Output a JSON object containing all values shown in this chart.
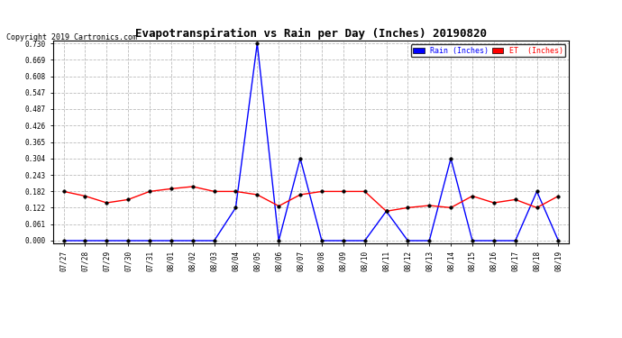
{
  "title": "Evapotranspiration vs Rain per Day (Inches) 20190820",
  "copyright": "Copyright 2019 Cartronics.com",
  "x_labels": [
    "07/27",
    "07/28",
    "07/29",
    "07/30",
    "07/31",
    "08/01",
    "08/02",
    "08/03",
    "08/04",
    "08/05",
    "08/06",
    "08/07",
    "08/08",
    "08/09",
    "08/10",
    "08/11",
    "08/12",
    "08/13",
    "08/14",
    "08/15",
    "08/16",
    "08/17",
    "08/18",
    "08/19"
  ],
  "rain_data": [
    0.0,
    0.0,
    0.0,
    0.0,
    0.0,
    0.0,
    0.0,
    0.0,
    0.122,
    0.73,
    0.0,
    0.304,
    0.0,
    0.0,
    0.0,
    0.109,
    0.0,
    0.0,
    0.304,
    0.0,
    0.0,
    0.0,
    0.182,
    0.0
  ],
  "et_data": [
    0.182,
    0.165,
    0.14,
    0.152,
    0.182,
    0.192,
    0.2,
    0.182,
    0.182,
    0.17,
    0.128,
    0.17,
    0.182,
    0.182,
    0.182,
    0.109,
    0.122,
    0.13,
    0.122,
    0.165,
    0.14,
    0.152,
    0.122,
    0.165
  ],
  "rain_color": "#0000ff",
  "et_color": "#ff0000",
  "title_fontsize": 9,
  "copyright_fontsize": 6,
  "legend_rain_label": "Rain (Inches)",
  "legend_et_label": "ET  (Inches)",
  "yticks": [
    0.0,
    0.061,
    0.122,
    0.182,
    0.243,
    0.304,
    0.365,
    0.426,
    0.487,
    0.547,
    0.608,
    0.669,
    0.73
  ],
  "ylim": [
    0.0,
    0.73
  ],
  "background_color": "#ffffff",
  "grid_color": "#bbbbbb"
}
